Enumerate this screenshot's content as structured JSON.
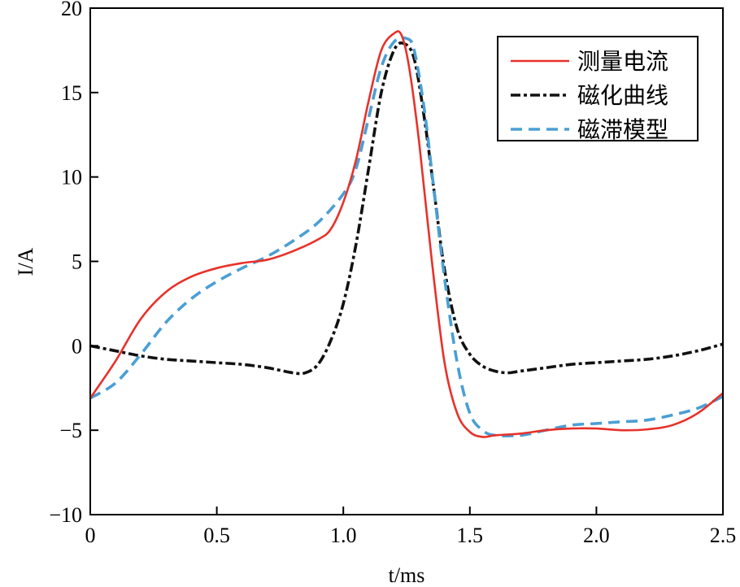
{
  "chart_data": {
    "type": "line",
    "title": "",
    "xlabel": "t/ms",
    "ylabel": "I/A",
    "xlim": [
      0,
      2.5
    ],
    "ylim": [
      -10,
      20
    ],
    "xticks": [
      0,
      0.5,
      1.0,
      1.5,
      2.0,
      2.5
    ],
    "xtick_labels": [
      "0",
      "0.5",
      "1.0",
      "1.5",
      "2.0",
      "2.5"
    ],
    "yticks": [
      -10,
      -5,
      0,
      5,
      10,
      15,
      20
    ],
    "ytick_labels": [
      "−10",
      "−5",
      "0",
      "5",
      "10",
      "15",
      "20"
    ],
    "grid": false,
    "legend_position": "top-right",
    "series": [
      {
        "name": "测量电流",
        "color": "#e8312a",
        "style": "solid",
        "x": [
          0,
          0.1,
          0.2,
          0.3,
          0.4,
          0.5,
          0.6,
          0.7,
          0.8,
          0.9,
          0.95,
          1.0,
          1.05,
          1.1,
          1.15,
          1.2,
          1.23,
          1.26,
          1.3,
          1.35,
          1.4,
          1.45,
          1.5,
          1.55,
          1.6,
          1.7,
          1.8,
          1.9,
          2.0,
          2.1,
          2.2,
          2.3,
          2.4,
          2.5
        ],
        "y": [
          -3.1,
          -0.9,
          1.6,
          3.2,
          4.1,
          4.6,
          4.9,
          5.1,
          5.6,
          6.3,
          6.9,
          8.5,
          11,
          14.5,
          17.5,
          18.5,
          18.4,
          16.5,
          12,
          5,
          -1,
          -4,
          -5.1,
          -5.4,
          -5.3,
          -5.2,
          -5.0,
          -4.9,
          -4.9,
          -5.0,
          -4.95,
          -4.7,
          -4.0,
          -2.8
        ]
      },
      {
        "name": "磁化曲线",
        "color": "#111111",
        "style": "dashdot",
        "x": [
          0,
          0.1,
          0.2,
          0.3,
          0.4,
          0.5,
          0.6,
          0.7,
          0.8,
          0.85,
          0.9,
          0.95,
          1.0,
          1.05,
          1.1,
          1.15,
          1.2,
          1.24,
          1.28,
          1.32,
          1.36,
          1.4,
          1.45,
          1.5,
          1.55,
          1.6,
          1.65,
          1.7,
          1.8,
          1.9,
          2.0,
          2.1,
          2.2,
          2.3,
          2.4,
          2.5
        ],
        "y": [
          0,
          -0.3,
          -0.6,
          -0.8,
          -0.9,
          -1.0,
          -1.1,
          -1.3,
          -1.6,
          -1.6,
          -1.1,
          0.3,
          2.5,
          6,
          10.5,
          15,
          17.5,
          17.9,
          17,
          13.5,
          9,
          4.5,
          1,
          -0.5,
          -1.2,
          -1.5,
          -1.6,
          -1.5,
          -1.3,
          -1.1,
          -1.0,
          -0.9,
          -0.8,
          -0.6,
          -0.3,
          0.1
        ]
      },
      {
        "name": "磁滞模型",
        "color": "#4a9fd4",
        "style": "dashed",
        "x": [
          0,
          0.1,
          0.2,
          0.3,
          0.4,
          0.5,
          0.6,
          0.7,
          0.8,
          0.9,
          1.0,
          1.05,
          1.1,
          1.15,
          1.2,
          1.25,
          1.28,
          1.32,
          1.36,
          1.4,
          1.45,
          1.5,
          1.55,
          1.6,
          1.7,
          1.8,
          1.9,
          2.0,
          2.1,
          2.2,
          2.3,
          2.4,
          2.5
        ],
        "y": [
          -3.1,
          -2.2,
          -0.5,
          1.4,
          2.8,
          3.8,
          4.6,
          5.3,
          6.2,
          7.3,
          9,
          10.5,
          13.5,
          16.5,
          18,
          18.2,
          17.5,
          14,
          9,
          4,
          -1,
          -4,
          -5,
          -5.3,
          -5.3,
          -5.0,
          -4.7,
          -4.6,
          -4.5,
          -4.4,
          -4.1,
          -3.7,
          -3.0
        ]
      }
    ]
  }
}
